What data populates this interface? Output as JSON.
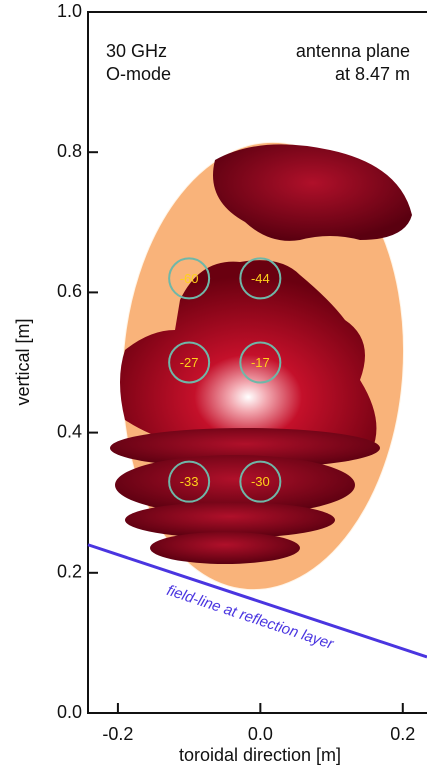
{
  "chart_data": {
    "type": "scatter",
    "annotations": [
      "30 GHz",
      "O-mode",
      "antenna plane",
      "at 8.47 m"
    ],
    "x_label": "toroidal direction [m]",
    "y_label": "vertical [m]",
    "xlim": [
      -0.242,
      0.234
    ],
    "ylim": [
      0,
      1
    ],
    "xticks": [
      -0.2,
      {
        "value": 0,
        "label": "0.0"
      },
      0.2
    ],
    "yticks": [
      {
        "value": 0,
        "label": "0.0"
      },
      0.2,
      0.4,
      0.6,
      0.8,
      {
        "value": 1,
        "label": "1.0"
      }
    ],
    "x": [
      -0.1,
      0,
      -0.1,
      0,
      -0.1,
      0
    ],
    "y": [
      0.62,
      0.62,
      0.5,
      0.5,
      0.33,
      0.33
    ],
    "labels": [
      -60,
      -44,
      -27,
      -17,
      -33,
      -30
    ],
    "marker_color": "#6fb7a8",
    "label_color": "#ffd21a",
    "line": {
      "x": [
        -0.242,
        0.234
      ],
      "y": [
        0.24,
        0.08
      ],
      "label": "field-line at reflection layer",
      "color": "#4a35e0"
    }
  }
}
